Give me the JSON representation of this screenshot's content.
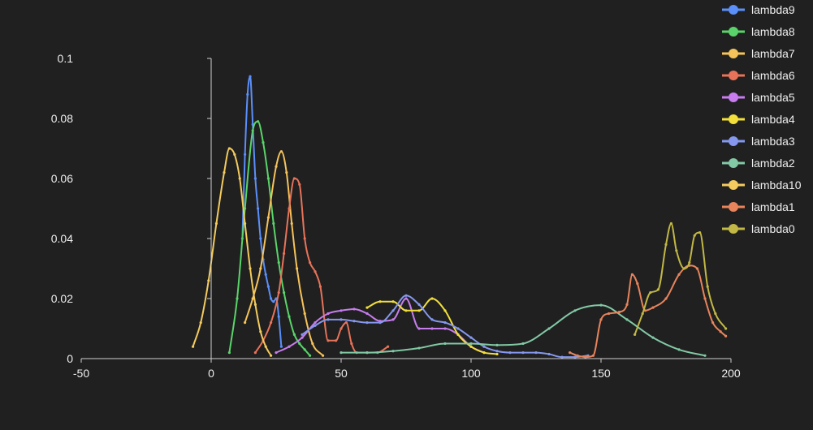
{
  "chart_data": {
    "type": "line",
    "title": "",
    "xlabel": "",
    "ylabel": "",
    "xlim": [
      -50,
      200
    ],
    "ylim": [
      0,
      0.1
    ],
    "x_ticks": [
      -50,
      0,
      50,
      100,
      150,
      200
    ],
    "x_tick_labels": [
      "-50",
      "0",
      "50",
      "100",
      "150",
      "200"
    ],
    "y_ticks": [
      0,
      0.02,
      0.04,
      0.06,
      0.08,
      0.1
    ],
    "y_tick_labels": [
      "0",
      "0.02",
      "0.04",
      "0.06",
      "0.08",
      "0.1"
    ],
    "grid": false,
    "smooth": true,
    "legend_position": "top-right",
    "series": [
      {
        "name": "lambda9",
        "color": "#5b8ff9",
        "x": [
          12,
          13,
          14,
          15,
          16,
          17,
          18,
          19,
          20,
          21,
          22,
          23,
          24,
          25,
          26,
          27
        ],
        "y": [
          0.04,
          0.068,
          0.088,
          0.094,
          0.078,
          0.06,
          0.05,
          0.04,
          0.033,
          0.028,
          0.024,
          0.02,
          0.019,
          0.02,
          0.014,
          0.004
        ]
      },
      {
        "name": "lambda8",
        "color": "#5ad46a",
        "x": [
          7,
          10,
          13,
          16,
          18,
          20,
          22,
          24,
          26,
          28,
          30,
          32,
          34,
          36,
          38
        ],
        "y": [
          0.002,
          0.02,
          0.05,
          0.076,
          0.079,
          0.072,
          0.06,
          0.045,
          0.032,
          0.022,
          0.014,
          0.008,
          0.005,
          0.003,
          0.001
        ]
      },
      {
        "name": "lambda7",
        "color": "#f6c35a",
        "x": [
          13,
          16,
          19,
          22,
          25,
          27,
          29,
          31,
          33,
          36,
          39,
          43
        ],
        "y": [
          0.012,
          0.02,
          0.03,
          0.047,
          0.064,
          0.069,
          0.062,
          0.045,
          0.03,
          0.015,
          0.005,
          0.001
        ]
      },
      {
        "name": "lambda6",
        "color": "#e8735a",
        "x": [
          17,
          20,
          23,
          26,
          28,
          30,
          32,
          34,
          36,
          38,
          40,
          42,
          45,
          48,
          50,
          52,
          54,
          56,
          60,
          64,
          68
        ],
        "y": [
          0.002,
          0.006,
          0.012,
          0.022,
          0.035,
          0.05,
          0.06,
          0.058,
          0.04,
          0.032,
          0.029,
          0.024,
          0.006,
          0.006,
          0.01,
          0.012,
          0.005,
          0.002,
          0.002,
          0.002,
          0.004
        ]
      },
      {
        "name": "lambda5",
        "color": "#c77dee",
        "x": [
          25,
          30,
          35,
          40,
          45,
          50,
          55,
          60,
          65,
          70,
          75,
          80,
          85,
          90,
          95,
          100,
          105
        ],
        "y": [
          0.002,
          0.004,
          0.007,
          0.012,
          0.015,
          0.016,
          0.0165,
          0.015,
          0.0125,
          0.013,
          0.02,
          0.01,
          0.01,
          0.01,
          0.008,
          0.004,
          0.002
        ]
      },
      {
        "name": "lambda4",
        "color": "#f2df3b",
        "x": [
          60,
          65,
          70,
          75,
          80,
          85,
          90,
          95,
          100,
          105,
          110
        ],
        "y": [
          0.017,
          0.019,
          0.019,
          0.016,
          0.016,
          0.02,
          0.016,
          0.008,
          0.004,
          0.002,
          0.0015
        ]
      },
      {
        "name": "lambda3",
        "color": "#8598ee",
        "x": [
          35,
          40,
          45,
          50,
          55,
          60,
          65,
          70,
          75,
          80,
          85,
          90,
          95,
          100,
          105,
          110,
          115,
          120,
          125,
          130,
          135,
          140,
          145
        ],
        "y": [
          0.008,
          0.011,
          0.013,
          0.013,
          0.0125,
          0.012,
          0.012,
          0.016,
          0.021,
          0.018,
          0.013,
          0.012,
          0.01,
          0.007,
          0.004,
          0.0025,
          0.002,
          0.002,
          0.002,
          0.0015,
          0.0005,
          0.0005,
          0.001
        ]
      },
      {
        "name": "lambda2",
        "color": "#82c9a5",
        "x": [
          50,
          60,
          70,
          80,
          90,
          100,
          110,
          120,
          130,
          140,
          150,
          160,
          170,
          180,
          190
        ],
        "y": [
          0.002,
          0.002,
          0.0025,
          0.0035,
          0.005,
          0.005,
          0.0045,
          0.005,
          0.01,
          0.016,
          0.0178,
          0.013,
          0.007,
          0.003,
          0.001
        ]
      },
      {
        "name": "lambda10",
        "color": "#f3cb5e",
        "x": [
          -7,
          -4,
          -1,
          2,
          5,
          7,
          9,
          11,
          13,
          15,
          17,
          19,
          21,
          23
        ],
        "y": [
          0.004,
          0.012,
          0.026,
          0.045,
          0.062,
          0.07,
          0.068,
          0.06,
          0.045,
          0.03,
          0.018,
          0.009,
          0.004,
          0.001
        ]
      },
      {
        "name": "lambda1",
        "color": "#e8845c",
        "x": [
          138,
          141,
          144,
          147,
          150,
          153,
          157,
          160,
          162,
          164,
          167,
          170,
          175,
          180,
          184,
          187,
          190,
          193,
          196,
          198
        ],
        "y": [
          0.002,
          0.001,
          0.0005,
          0.001,
          0.013,
          0.015,
          0.0155,
          0.018,
          0.028,
          0.025,
          0.016,
          0.017,
          0.02,
          0.028,
          0.031,
          0.03,
          0.02,
          0.012,
          0.009,
          0.0075
        ]
      },
      {
        "name": "lambda0",
        "color": "#c2b845",
        "x": [
          163,
          166,
          169,
          172,
          175,
          177,
          179,
          182,
          184,
          186,
          188,
          191,
          194,
          198
        ],
        "y": [
          0.008,
          0.015,
          0.022,
          0.023,
          0.038,
          0.045,
          0.036,
          0.03,
          0.032,
          0.041,
          0.042,
          0.024,
          0.015,
          0.01
        ]
      }
    ]
  }
}
